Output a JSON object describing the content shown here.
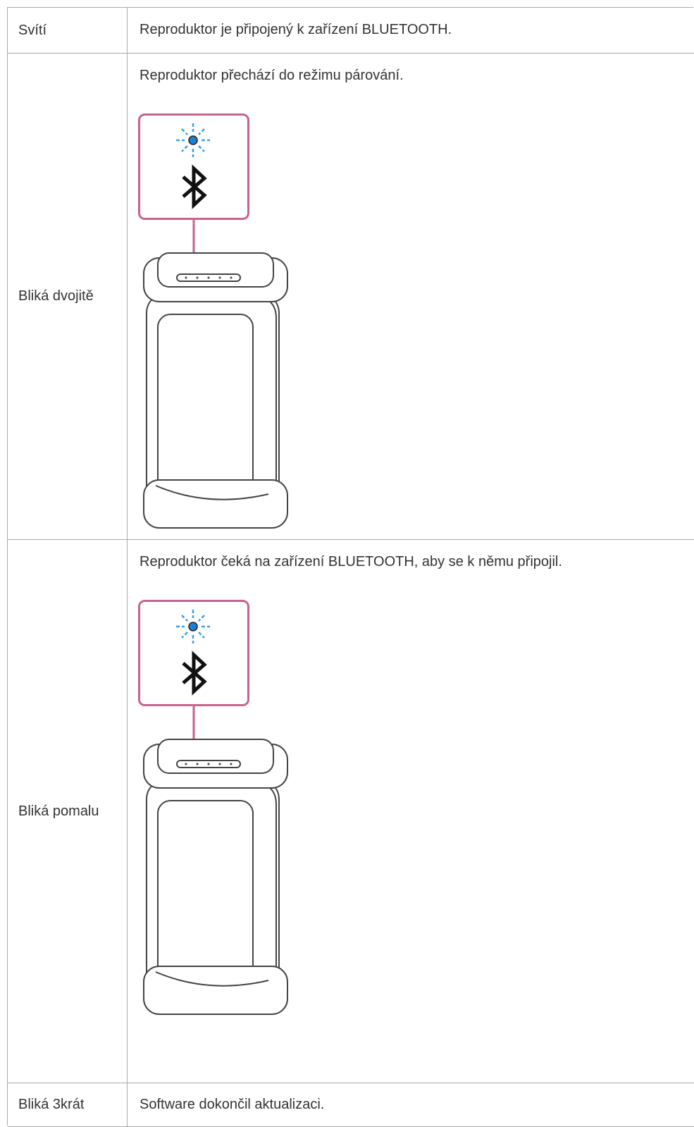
{
  "table": {
    "rows": [
      [
        "Svítí",
        "Reproduktor je připojený k zařízení BLUETOOTH."
      ],
      [
        "Bliká dvojitě",
        "Reproduktor přechází do režimu párování."
      ],
      [
        "Bliká pomalu",
        "Reproduktor čeká na zařízení BLUETOOTH, aby se k němu připojil."
      ],
      [
        "Bliká 3krát",
        "Software dokončil aktualizaci."
      ]
    ]
  }
}
